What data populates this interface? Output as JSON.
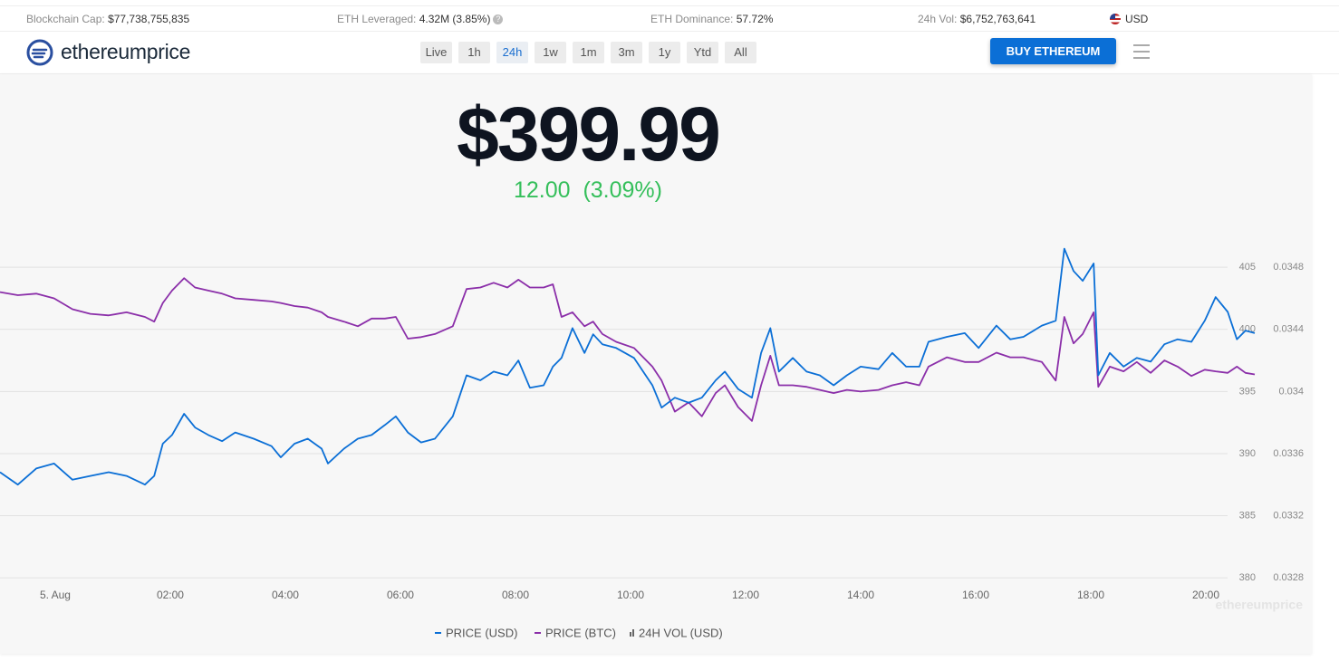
{
  "header": {
    "stats": [
      {
        "label": "Blockchain Cap:",
        "value": "$77,738,755,835"
      },
      {
        "label": "ETH Leveraged:",
        "value": "4.32M (3.85%)"
      },
      {
        "label": "ETH Dominance:",
        "value": "57.72%"
      },
      {
        "label": "24h Vol:",
        "value": "$6,752,763,641"
      }
    ],
    "currency": "USD"
  },
  "nav": {
    "brand": "ethereumprice",
    "ranges": [
      "Live",
      "1h",
      "24h",
      "1w",
      "1m",
      "3m",
      "1y",
      "Ytd",
      "All"
    ],
    "active": 2,
    "cta": "BUY ETHEREUM"
  },
  "price": {
    "value": "$399.99",
    "change": "12.00",
    "change_pct": "(3.09%)"
  },
  "chart_data": {
    "type": "line",
    "x": [
      -0.96,
      -0.65,
      -0.33,
      -0.02,
      0.3,
      0.61,
      0.93,
      1.24,
      1.56,
      1.72,
      1.87,
      2.03,
      2.24,
      2.43,
      2.66,
      2.9,
      3.13,
      3.45,
      3.76,
      3.92,
      4.16,
      4.39,
      4.63,
      4.74,
      5.02,
      5.26,
      5.5,
      5.73,
      5.92,
      6.13,
      6.36,
      6.6,
      6.91,
      7.15,
      7.39,
      7.62,
      7.86,
      8.05,
      8.25,
      8.49,
      8.65,
      8.8,
      8.99,
      9.2,
      9.35,
      9.51,
      9.75,
      10.06,
      10.38,
      10.54,
      10.77,
      11.01,
      11.24,
      11.48,
      11.64,
      11.87,
      12.11,
      12.27,
      12.43,
      12.58,
      12.82,
      13.06,
      13.29,
      13.53,
      13.76,
      14.0,
      14.31,
      14.55,
      14.79,
      15.02,
      15.18,
      15.5,
      15.81,
      16.05,
      16.36,
      16.6,
      16.83,
      17.15,
      17.39,
      17.54,
      17.7,
      17.86,
      18.05,
      18.13,
      18.33,
      18.57,
      18.8,
      19.04,
      19.28,
      19.51,
      19.75,
      19.98,
      20.17,
      20.38,
      20.54,
      20.69,
      20.85
    ],
    "series": [
      {
        "name": "PRICE (USD)",
        "color": "#0b6fd6",
        "values": [
          388.5,
          387.5,
          388.8,
          389.2,
          387.9,
          388.2,
          388.5,
          388.2,
          387.5,
          388.2,
          390.8,
          391.5,
          393.2,
          392.1,
          391.5,
          391.0,
          391.7,
          391.2,
          390.6,
          389.7,
          390.8,
          391.2,
          390.4,
          389.2,
          390.4,
          391.2,
          391.5,
          392.3,
          393.0,
          391.7,
          390.9,
          391.2,
          393.0,
          396.3,
          395.9,
          396.6,
          396.3,
          397.5,
          395.3,
          395.5,
          397.0,
          397.7,
          400.1,
          398.1,
          399.6,
          398.8,
          398.5,
          397.7,
          395.5,
          393.7,
          394.5,
          394.1,
          394.5,
          395.9,
          396.6,
          395.2,
          394.5,
          398.1,
          400.1,
          396.6,
          397.7,
          396.6,
          396.3,
          395.5,
          396.3,
          397.0,
          396.8,
          398.1,
          397.0,
          397.0,
          399.0,
          399.4,
          399.7,
          398.5,
          400.3,
          399.2,
          399.4,
          400.3,
          400.7,
          406.5,
          404.7,
          403.9,
          405.3,
          396.3,
          398.1,
          397.0,
          397.7,
          397.4,
          398.8,
          399.2,
          399.0,
          400.7,
          402.6,
          401.4,
          399.2,
          399.9,
          399.7
        ]
      },
      {
        "name": "PRICE (BTC)",
        "color": "#8b2fa9",
        "axis": "y2",
        "values": [
          0.03464,
          0.03462,
          0.03463,
          0.0346,
          0.03453,
          0.0345,
          0.03449,
          0.03451,
          0.03448,
          0.03445,
          0.03457,
          0.03465,
          0.03473,
          0.03467,
          0.03465,
          0.03463,
          0.0346,
          0.03459,
          0.03458,
          0.03457,
          0.03455,
          0.03454,
          0.03451,
          0.03448,
          0.03445,
          0.03442,
          0.03447,
          0.03447,
          0.03448,
          0.03434,
          0.03435,
          0.03437,
          0.03442,
          0.03466,
          0.03467,
          0.0347,
          0.03467,
          0.03472,
          0.03467,
          0.03467,
          0.03469,
          0.03448,
          0.03451,
          0.03442,
          0.03445,
          0.03437,
          0.03432,
          0.03428,
          0.03416,
          0.03407,
          0.03387,
          0.03393,
          0.03384,
          0.03399,
          0.03404,
          0.0339,
          0.03381,
          0.03404,
          0.03423,
          0.03404,
          0.03404,
          0.03403,
          0.03401,
          0.03399,
          0.03401,
          0.034,
          0.03401,
          0.03404,
          0.03406,
          0.03404,
          0.03416,
          0.03422,
          0.03419,
          0.03419,
          0.03425,
          0.03422,
          0.03422,
          0.03419,
          0.03407,
          0.03448,
          0.03431,
          0.03437,
          0.03451,
          0.03403,
          0.03416,
          0.03413,
          0.03419,
          0.03412,
          0.0342,
          0.03416,
          0.0341,
          0.03414,
          0.03413,
          0.03412,
          0.03416,
          0.03412,
          0.03411
        ]
      }
    ],
    "extra_legend": [
      {
        "name": "24H VOL (USD)",
        "color": "#666666"
      }
    ],
    "xlim": [
      -0.96,
      20.85
    ],
    "xticks": [
      {
        "value": 0,
        "label": "5. Aug"
      },
      {
        "value": 2,
        "label": "02:00"
      },
      {
        "value": 4,
        "label": "04:00"
      },
      {
        "value": 6,
        "label": "06:00"
      },
      {
        "value": 8,
        "label": "08:00"
      },
      {
        "value": 10,
        "label": "10:00"
      },
      {
        "value": 12,
        "label": "12:00"
      },
      {
        "value": 14,
        "label": "14:00"
      },
      {
        "value": 16,
        "label": "16:00"
      },
      {
        "value": 18,
        "label": "18:00"
      },
      {
        "value": 20,
        "label": "20:00"
      }
    ],
    "ylim": [
      379.5,
      408
    ],
    "yticks": [
      380,
      385,
      390,
      395,
      400,
      405
    ],
    "y2lim": [
      0.03276,
      0.03504
    ],
    "y2ticks": [
      0.0328,
      0.0332,
      0.0336,
      0.034,
      0.0344,
      0.0348
    ],
    "grid": true
  }
}
